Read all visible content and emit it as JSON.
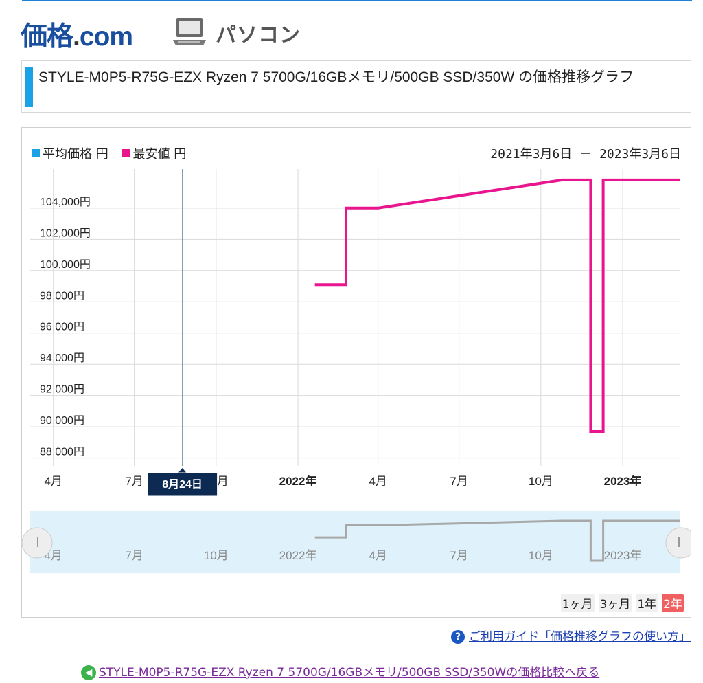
{
  "site": {
    "logo_main": "価格",
    "logo_dot": ".",
    "logo_com": "com",
    "category": "パソコン"
  },
  "title": "STYLE-M0P5-R75G-EZX Ryzen 7 5700G/16GBメモリ/500GB SSD/350W の価格推移グラフ",
  "legend": {
    "avg_label": "平均価格 円",
    "min_label": "最安値 円",
    "avg_color": "#1aa1e6",
    "min_color": "#e8158f"
  },
  "date_range": "2021年3月6日 － 2023年3月6日",
  "tooltip_date": "8月24日",
  "range_buttons": [
    "1ヶ月",
    "3ヶ月",
    "1年",
    "2年"
  ],
  "active_range": "2年",
  "guide_link": "ご利用ガイド「価格推移グラフの使い方」",
  "back_link": "STYLE-M0P5-R75G-EZX Ryzen 7 5700G/16GBメモリ/500GB SSD/350Wの価格比較へ戻る",
  "chart_data": {
    "type": "line",
    "y_tick_labels": [
      "104,000円",
      "102,000円",
      "100,000円",
      "98,000円",
      "96,000円",
      "94,000円",
      "92,000円",
      "90,000円",
      "88,000円"
    ],
    "y_ticks": [
      104000,
      102000,
      100000,
      98000,
      96000,
      94000,
      92000,
      90000,
      88000
    ],
    "x_tick_labels": [
      "4月",
      "7月",
      "10月",
      "2022年",
      "4月",
      "7月",
      "10月",
      "2023年"
    ],
    "x_bold": [
      false,
      false,
      false,
      true,
      false,
      false,
      false,
      true
    ],
    "ylim": [
      87500,
      106500
    ],
    "grid": true,
    "series": [
      {
        "name": "最安値",
        "color": "#e8158f",
        "x": [
          "2022-01-20",
          "2022-02-24",
          "2022-02-24",
          "2022-04-01",
          "2022-10-25",
          "2022-11-26",
          "2022-11-26",
          "2022-12-10",
          "2022-12-10",
          "2023-03-06"
        ],
        "values": [
          99100,
          99100,
          104000,
          104000,
          105800,
          105800,
          89700,
          89700,
          105800,
          105800
        ]
      },
      {
        "name": "平均価格",
        "color": "#1aa1e6",
        "x": [
          "2022-01-20",
          "2022-02-24",
          "2022-02-24",
          "2022-04-01",
          "2022-10-25",
          "2022-11-26",
          "2022-11-26",
          "2022-12-10",
          "2022-12-10",
          "2023-03-06"
        ],
        "values": [
          99100,
          99100,
          104000,
          104000,
          105800,
          105800,
          89700,
          89700,
          105800,
          105800
        ]
      }
    ],
    "overview_tick_labels": [
      "4月",
      "7月",
      "10月",
      "2022年",
      "4月",
      "7月",
      "10月",
      "2023年"
    ]
  }
}
